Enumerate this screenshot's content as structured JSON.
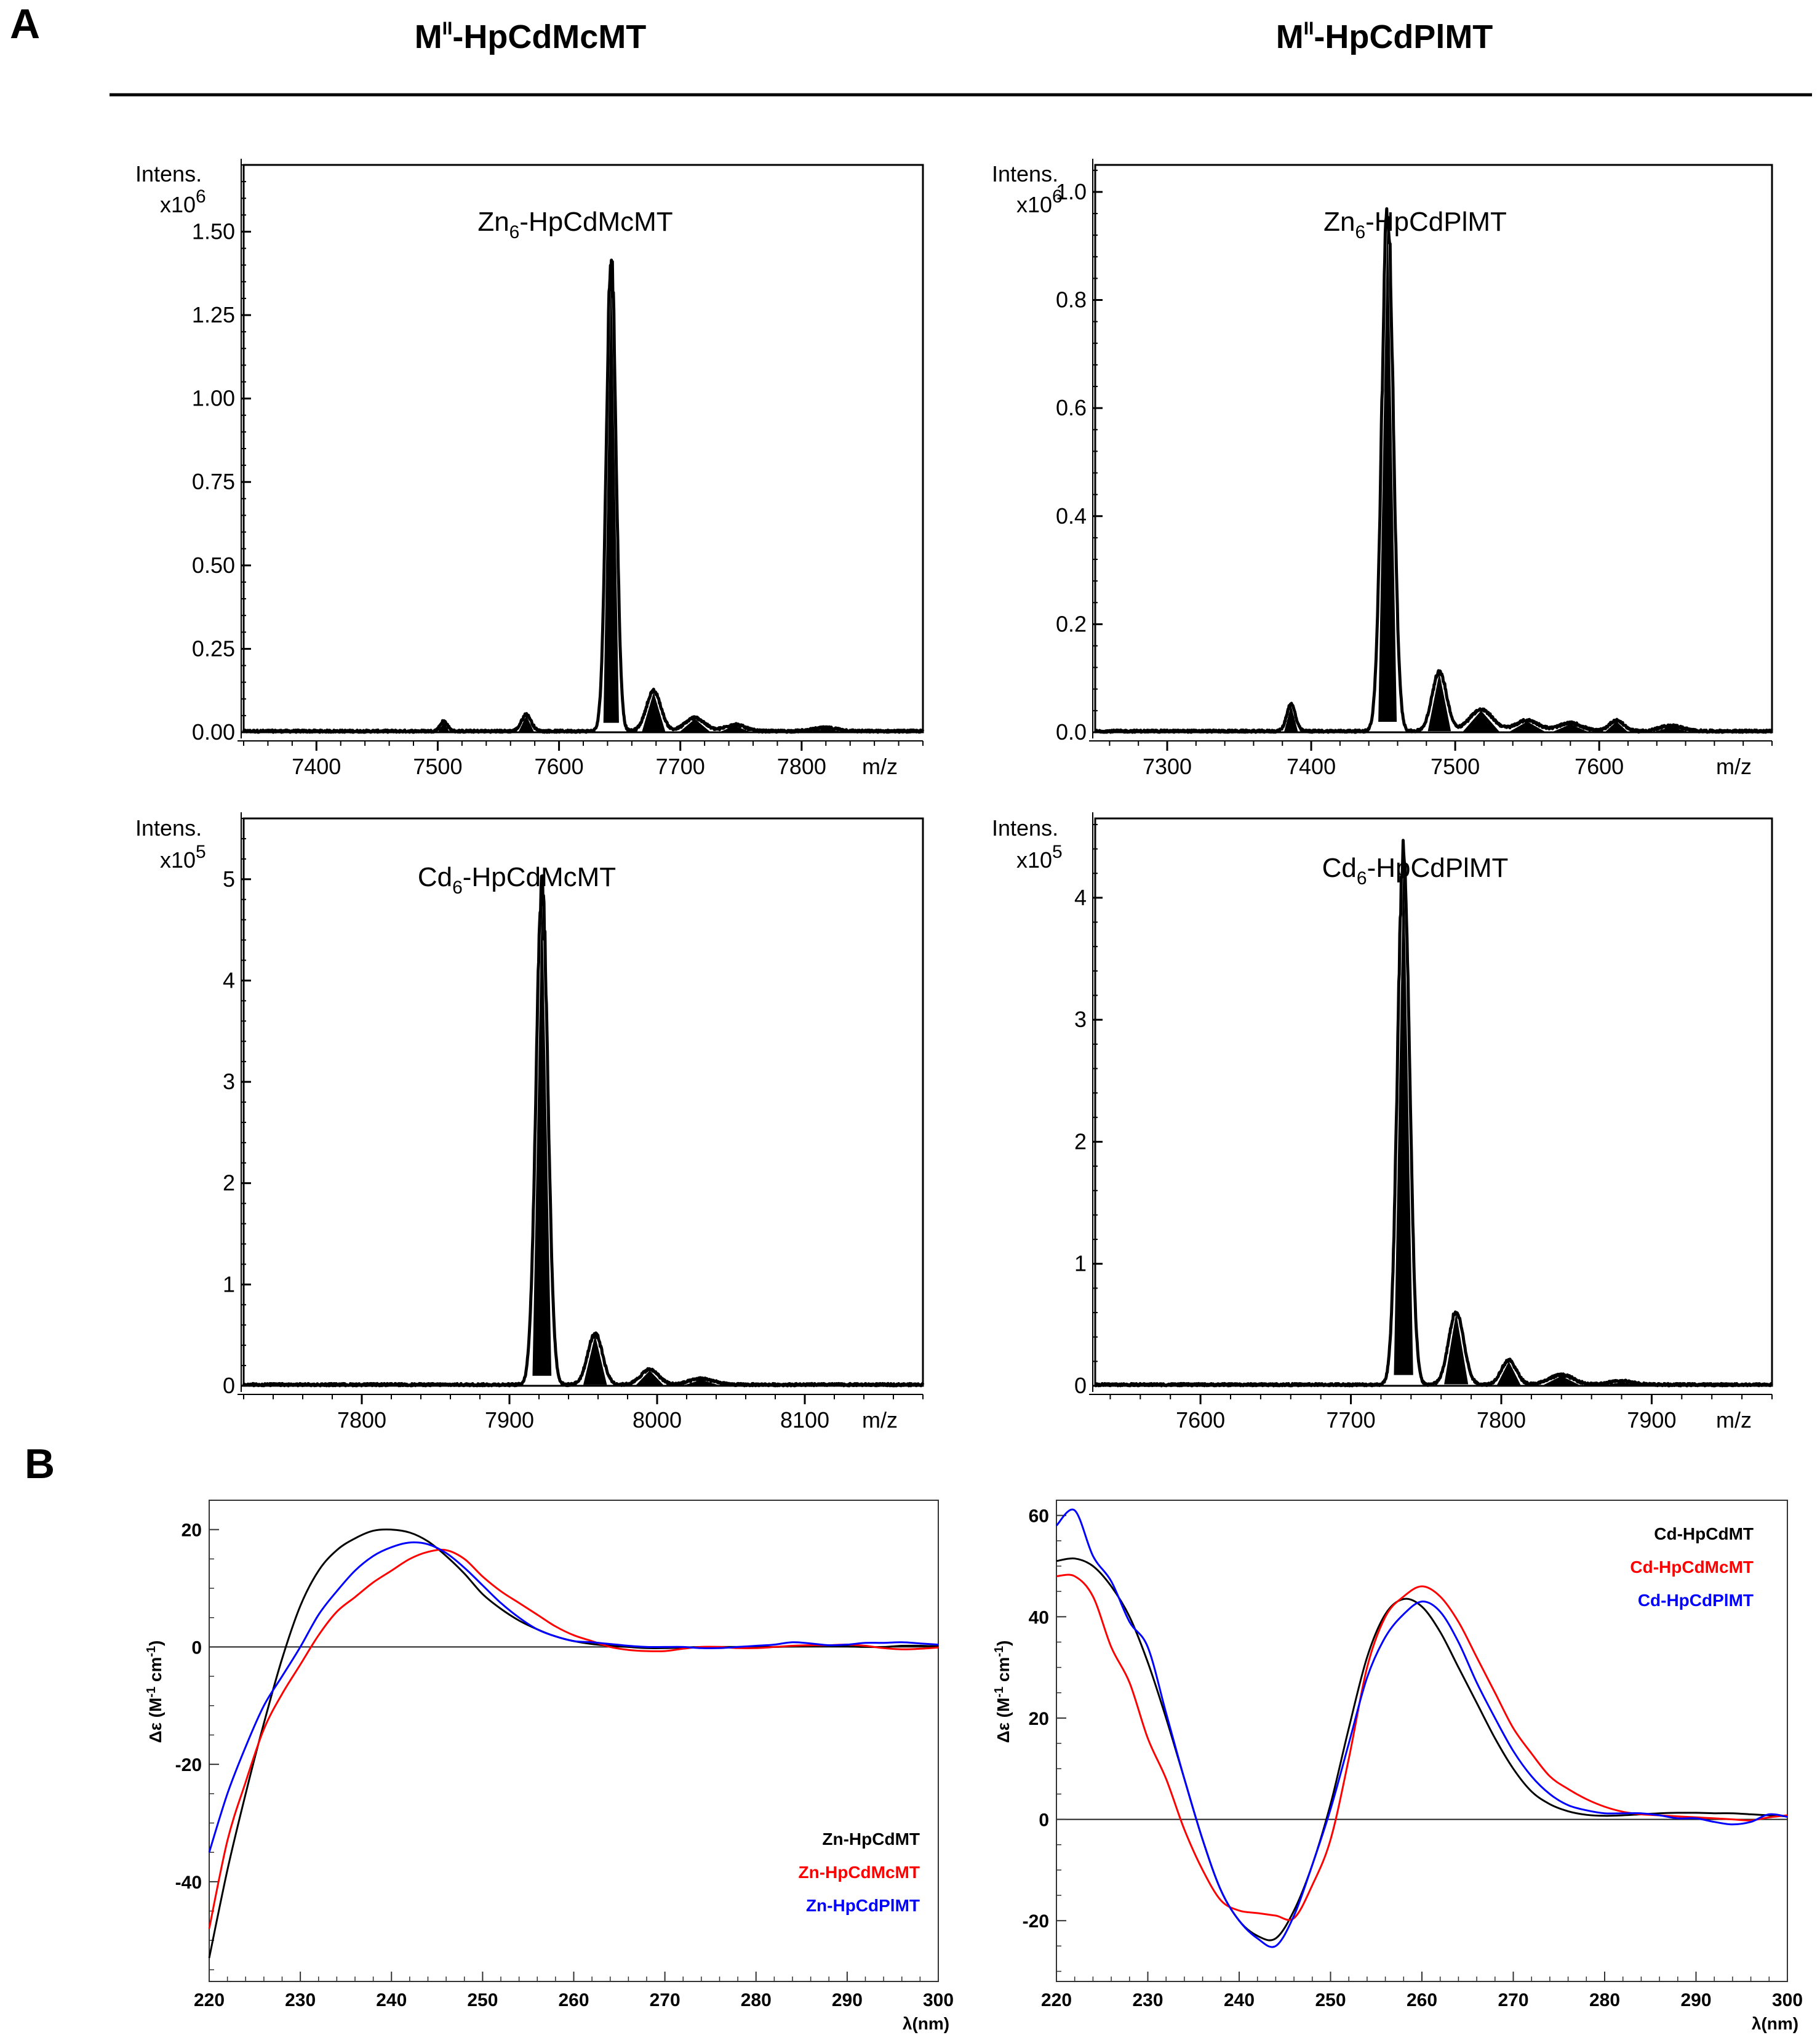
{
  "panel_a_label": "A",
  "panel_b_label": "B",
  "column_titles": [
    {
      "main": "M",
      "sup": "II",
      "rest": "-HpCdMcMT"
    },
    {
      "main": "M",
      "sup": "II",
      "rest": "-HpCdPlMT"
    }
  ],
  "chart_data": [
    {
      "id": "ms1",
      "type": "line",
      "title_parts": [
        "Zn",
        "6",
        "-HpCdMcMT"
      ],
      "ylabel": "Intens.",
      "multiplier_base": "x10",
      "multiplier_exp": "6",
      "xlabel": "m/z",
      "xlim": [
        7340,
        7900
      ],
      "ylim": [
        0,
        1.7
      ],
      "xticks": [
        7400,
        7500,
        7600,
        7700,
        7800
      ],
      "yticks": [
        0,
        0.25,
        0.5,
        0.75,
        1.0,
        1.25,
        1.5
      ],
      "ytick_labels": [
        "0.00",
        "0.25",
        "0.50",
        "0.75",
        "1.00",
        "1.25",
        "1.50"
      ],
      "peaks": [
        [
          7505,
          0.03,
          3
        ],
        [
          7573,
          0.05,
          4
        ],
        [
          7643,
          1.42,
          4
        ],
        [
          7678,
          0.12,
          6
        ],
        [
          7712,
          0.04,
          8
        ],
        [
          7745,
          0.02,
          8
        ],
        [
          7820,
          0.01,
          10
        ]
      ]
    },
    {
      "id": "ms2",
      "type": "line",
      "title_parts": [
        "Zn",
        "6",
        "-HpCdPlMT"
      ],
      "ylabel": "Intens.",
      "multiplier_base": "x10",
      "multiplier_exp": "6",
      "xlabel": "m/z",
      "xlim": [
        7250,
        7720
      ],
      "ylim": [
        0,
        1.05
      ],
      "xticks": [
        7300,
        7400,
        7500,
        7600
      ],
      "yticks": [
        0,
        0.2,
        0.4,
        0.6,
        0.8,
        1.0
      ],
      "ytick_labels": [
        "0.0",
        "0.2",
        "0.4",
        "0.6",
        "0.8",
        "1.0"
      ],
      "peaks": [
        [
          7386,
          0.05,
          3
        ],
        [
          7453,
          0.97,
          4
        ],
        [
          7489,
          0.11,
          5
        ],
        [
          7518,
          0.04,
          8
        ],
        [
          7550,
          0.02,
          8
        ],
        [
          7580,
          0.015,
          8
        ],
        [
          7612,
          0.02,
          5
        ],
        [
          7650,
          0.01,
          8
        ]
      ]
    },
    {
      "id": "ms3",
      "type": "line",
      "title_parts": [
        "Cd",
        "6",
        "-HpCdMcMT"
      ],
      "ylabel": "Intens.",
      "multiplier_base": "x10",
      "multiplier_exp": "5",
      "xlabel": "m/z",
      "xlim": [
        7720,
        8180
      ],
      "ylim": [
        0,
        5.6
      ],
      "xticks": [
        7800,
        7900,
        8000,
        8100
      ],
      "yticks": [
        0,
        1,
        2,
        3,
        4,
        5
      ],
      "ytick_labels": [
        "0",
        "1",
        "2",
        "3",
        "4",
        "5"
      ],
      "peaks": [
        [
          7922,
          4.95,
          4
        ],
        [
          7958,
          0.5,
          5
        ],
        [
          7995,
          0.15,
          6
        ],
        [
          8030,
          0.06,
          8
        ]
      ]
    },
    {
      "id": "ms4",
      "type": "line",
      "title_parts": [
        "Cd",
        "6",
        "-HpCdPlMT"
      ],
      "ylabel": "Intens.",
      "multiplier_base": "x10",
      "multiplier_exp": "5",
      "xlabel": "m/z",
      "xlim": [
        7530,
        7980
      ],
      "ylim": [
        0,
        4.65
      ],
      "xticks": [
        7600,
        7700,
        7800,
        7900
      ],
      "yticks": [
        0,
        1,
        2,
        3,
        4
      ],
      "ytick_labels": [
        "0",
        "1",
        "2",
        "3",
        "4"
      ],
      "peaks": [
        [
          7735,
          4.4,
          4
        ],
        [
          7770,
          0.6,
          5
        ],
        [
          7805,
          0.2,
          5
        ],
        [
          7840,
          0.08,
          8
        ],
        [
          7880,
          0.03,
          8
        ]
      ]
    },
    {
      "id": "cd1",
      "type": "line",
      "ylabel": "Δε (M-1 cm-1)",
      "xlabel": "λ(nm)",
      "xlim": [
        220,
        300
      ],
      "ylim": [
        -57,
        25
      ],
      "xticks": [
        220,
        230,
        240,
        250,
        260,
        270,
        280,
        290,
        300
      ],
      "yticks": [
        -40,
        -20,
        0,
        20
      ],
      "legend_position": "bottom-right",
      "series": [
        {
          "name": "Zn-HpCdMT",
          "color": "#000000",
          "x": [
            220,
            222,
            224,
            226,
            228,
            230,
            232,
            234,
            236,
            238,
            240,
            242,
            244,
            246,
            248,
            250,
            252,
            254,
            256,
            258,
            260,
            262,
            264,
            266,
            268,
            270,
            272,
            274,
            276,
            278,
            280,
            282,
            284,
            286,
            288,
            290,
            292,
            294,
            296,
            298,
            300
          ],
          "y": [
            -53,
            -38,
            -25,
            -13,
            -2,
            7,
            13,
            16.5,
            18.5,
            19.8,
            20,
            19.5,
            18,
            15.5,
            12.5,
            9,
            6.5,
            4.5,
            3,
            1.8,
            1,
            0.5,
            0.2,
            0,
            -0.2,
            -0.2,
            -0.1,
            0,
            0,
            0,
            0,
            0,
            0.1,
            0.2,
            0.2,
            0.1,
            0,
            0,
            0.2,
            0.2,
            0.1
          ]
        },
        {
          "name": "Zn-HpCdMcMT",
          "color": "#ff0000",
          "x": [
            220,
            222,
            224,
            226,
            228,
            230,
            232,
            234,
            236,
            238,
            240,
            242,
            244,
            246,
            248,
            250,
            252,
            254,
            256,
            258,
            260,
            262,
            264,
            266,
            268,
            270,
            272,
            274,
            276,
            278,
            280,
            282,
            284,
            286,
            288,
            290,
            292,
            294,
            296,
            298,
            300
          ],
          "y": [
            -48,
            -33,
            -23,
            -14,
            -8,
            -3,
            2,
            6,
            8.5,
            11,
            13,
            15,
            16.2,
            16.5,
            15,
            12,
            9.5,
            7.5,
            5.5,
            3.5,
            2,
            1,
            0,
            -0.5,
            -0.7,
            -0.7,
            -0.3,
            0,
            0,
            -0.2,
            -0.2,
            0,
            0.2,
            0.3,
            0.3,
            0.4,
            0.2,
            -0.2,
            -0.4,
            -0.3,
            -0.1
          ]
        },
        {
          "name": "Zn-HpCdPlMT",
          "color": "#0000ff",
          "x": [
            220,
            222,
            224,
            226,
            228,
            230,
            232,
            234,
            236,
            238,
            240,
            242,
            244,
            246,
            248,
            250,
            252,
            254,
            256,
            258,
            260,
            262,
            264,
            266,
            268,
            270,
            272,
            274,
            276,
            278,
            280,
            282,
            284,
            286,
            288,
            290,
            292,
            294,
            296,
            298,
            300
          ],
          "y": [
            -35,
            -25,
            -17,
            -10,
            -5,
            0,
            5.5,
            9.5,
            13,
            15.5,
            17,
            17.8,
            17.5,
            16,
            13.5,
            10.5,
            7.5,
            5,
            3,
            1.8,
            1,
            0.8,
            0.5,
            0.2,
            0,
            0,
            0,
            -0.2,
            -0.2,
            0,
            0.2,
            0.4,
            0.8,
            0.6,
            0.3,
            0.4,
            0.7,
            0.7,
            0.8,
            0.6,
            0.4
          ]
        }
      ]
    },
    {
      "id": "cd2",
      "type": "line",
      "ylabel": "Δε (M-1 cm-1)",
      "xlabel": "λ(nm)",
      "xlim": [
        220,
        300
      ],
      "ylim": [
        -32,
        63
      ],
      "xticks": [
        220,
        230,
        240,
        250,
        260,
        270,
        280,
        290,
        300
      ],
      "yticks": [
        -20,
        0,
        20,
        40,
        60
      ],
      "legend_position": "top-right",
      "series": [
        {
          "name": "Cd-HpCdMT",
          "color": "#000000",
          "x": [
            220,
            222,
            224,
            226,
            228,
            230,
            232,
            234,
            236,
            238,
            240,
            242,
            244,
            246,
            248,
            250,
            252,
            254,
            256,
            258,
            260,
            262,
            264,
            266,
            268,
            270,
            272,
            274,
            276,
            278,
            280,
            282,
            284,
            286,
            288,
            290,
            292,
            294,
            296,
            298,
            300
          ],
          "y": [
            51,
            51.5,
            50,
            46,
            40,
            31,
            20,
            8,
            -4,
            -14,
            -20,
            -23,
            -23.5,
            -18,
            -9,
            3,
            18,
            32,
            40.5,
            43.5,
            42,
            37,
            30,
            23,
            16,
            10,
            5.5,
            3,
            1.6,
            0.9,
            0.7,
            0.8,
            1,
            1.2,
            1.3,
            1.3,
            1.2,
            1.2,
            1,
            0.8,
            0.6
          ]
        },
        {
          "name": "Cd-HpCdMcMT",
          "color": "#ff0000",
          "x": [
            220,
            222,
            224,
            226,
            228,
            230,
            232,
            234,
            236,
            238,
            240,
            242,
            244,
            246,
            248,
            250,
            252,
            254,
            256,
            258,
            260,
            262,
            264,
            266,
            268,
            270,
            272,
            274,
            276,
            278,
            280,
            282,
            284,
            286,
            288,
            290,
            292,
            294,
            296,
            298,
            300
          ],
          "y": [
            48,
            48,
            44,
            34,
            27,
            16,
            8,
            -2,
            -10,
            -16,
            -18,
            -18.5,
            -19,
            -19.5,
            -13,
            -4,
            12,
            30,
            40,
            44,
            46,
            44,
            39,
            32,
            25,
            18,
            13,
            8.5,
            6,
            4,
            2.5,
            1.5,
            1,
            0.8,
            0.6,
            0.4,
            0.2,
            0,
            -0.2,
            0.4,
            0.8
          ]
        },
        {
          "name": "Cd-HpCdPlMT",
          "color": "#0000ff",
          "x": [
            220,
            222,
            224,
            226,
            228,
            230,
            232,
            234,
            236,
            238,
            240,
            242,
            244,
            246,
            248,
            250,
            252,
            254,
            256,
            258,
            260,
            262,
            264,
            266,
            268,
            270,
            272,
            274,
            276,
            278,
            280,
            282,
            284,
            286,
            288,
            290,
            292,
            294,
            296,
            298,
            300
          ],
          "y": [
            58,
            61,
            52,
            47,
            39,
            34,
            21,
            8,
            -4,
            -14,
            -20,
            -23.5,
            -25,
            -19,
            -9,
            2,
            15,
            28,
            36,
            40.5,
            43,
            41,
            35,
            27,
            20,
            13.5,
            8.5,
            5,
            2.8,
            1.8,
            1.2,
            1.2,
            1.2,
            0.8,
            0.2,
            0.2,
            -0.5,
            -1,
            -0.5,
            1,
            0.5
          ]
        }
      ]
    }
  ]
}
